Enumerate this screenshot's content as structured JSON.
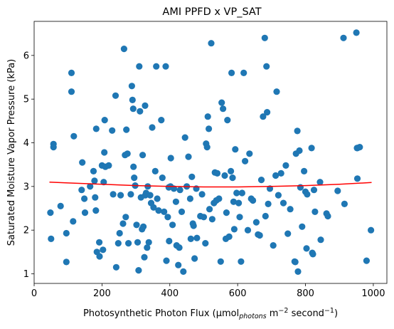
{
  "chart_data": {
    "type": "scatter",
    "title": "AMI PPFD x VP_SAT",
    "xlabel": {
      "prefix": "Photosynthetic Photon Flux (μmol",
      "sub": "photons",
      "mid": " m",
      "sup1": "−2",
      "mid2": " second",
      "sup2": "−1",
      "suffix": ")"
    },
    "ylabel": "Saturated Moisture Vapor Pressure (kPa)",
    "xlim": [
      0,
      1040
    ],
    "ylim": [
      0.78,
      6.78
    ],
    "xticks": [
      0,
      200,
      400,
      600,
      800,
      1000
    ],
    "yticks": [
      1,
      2,
      3,
      4,
      5,
      6
    ],
    "xtick_labels": [
      "0",
      "200",
      "400",
      "600",
      "800",
      "1000"
    ],
    "ytick_labels": [
      "1",
      "2",
      "3",
      "4",
      "5",
      "6"
    ],
    "point_color": "#1f77b4",
    "line_color": "#ff0000",
    "points": [
      [
        48,
        2.4
      ],
      [
        50,
        1.8
      ],
      [
        57,
        3.97
      ],
      [
        57,
        3.9
      ],
      [
        78,
        2.55
      ],
      [
        95,
        1.93
      ],
      [
        95,
        1.27
      ],
      [
        110,
        5.6
      ],
      [
        110,
        5.17
      ],
      [
        117,
        4.15
      ],
      [
        115,
        2.2
      ],
      [
        140,
        2.92
      ],
      [
        142,
        3.55
      ],
      [
        148,
        2.72
      ],
      [
        150,
        2.4
      ],
      [
        165,
        3.0
      ],
      [
        175,
        3.35
      ],
      [
        178,
        3.13
      ],
      [
        180,
        2.75
      ],
      [
        182,
        2.45
      ],
      [
        183,
        4.32
      ],
      [
        185,
        1.5
      ],
      [
        192,
        1.72
      ],
      [
        193,
        1.4
      ],
      [
        200,
        3.48
      ],
      [
        203,
        1.55
      ],
      [
        205,
        3.1
      ],
      [
        207,
        3.78
      ],
      [
        208,
        4.52
      ],
      [
        210,
        3.45
      ],
      [
        220,
        3.48
      ],
      [
        230,
        4.28
      ],
      [
        233,
        2.82
      ],
      [
        240,
        5.08
      ],
      [
        242,
        1.15
      ],
      [
        248,
        1.7
      ],
      [
        252,
        1.93
      ],
      [
        255,
        2.8
      ],
      [
        262,
        2.15
      ],
      [
        265,
        6.15
      ],
      [
        268,
        3.72
      ],
      [
        270,
        2.3
      ],
      [
        272,
        4.3
      ],
      [
        275,
        3.75
      ],
      [
        278,
        1.7
      ],
      [
        285,
        2.82
      ],
      [
        288,
        5.3
      ],
      [
        290,
        4.98
      ],
      [
        292,
        4.78
      ],
      [
        293,
        3.45
      ],
      [
        295,
        3.2
      ],
      [
        298,
        3.02
      ],
      [
        302,
        2.12
      ],
      [
        305,
        1.72
      ],
      [
        308,
        1.08
      ],
      [
        310,
        5.75
      ],
      [
        312,
        4.72
      ],
      [
        315,
        2.75
      ],
      [
        318,
        2.02
      ],
      [
        320,
        3.72
      ],
      [
        322,
        2.08
      ],
      [
        325,
        1.38
      ],
      [
        327,
        4.85
      ],
      [
        328,
        2.8
      ],
      [
        330,
        2.85
      ],
      [
        333,
        1.6
      ],
      [
        335,
        3.0
      ],
      [
        338,
        1.72
      ],
      [
        342,
        2.8
      ],
      [
        345,
        2.62
      ],
      [
        348,
        4.35
      ],
      [
        352,
        2.52
      ],
      [
        357,
        3.35
      ],
      [
        360,
        5.75
      ],
      [
        363,
        2.72
      ],
      [
        367,
        2.45
      ],
      [
        375,
        4.52
      ],
      [
        378,
        3.2
      ],
      [
        383,
        2.42
      ],
      [
        388,
        5.75
      ],
      [
        390,
        1.3
      ],
      [
        394,
        2.3
      ],
      [
        397,
        2.98
      ],
      [
        398,
        1.75
      ],
      [
        402,
        3.0
      ],
      [
        403,
        3.65
      ],
      [
        408,
        2.12
      ],
      [
        412,
        2.95
      ],
      [
        418,
        2.65
      ],
      [
        420,
        1.65
      ],
      [
        425,
        1.2
      ],
      [
        428,
        1.6
      ],
      [
        430,
        2.92
      ],
      [
        435,
        2.42
      ],
      [
        440,
        1.05
      ],
      [
        445,
        4.12
      ],
      [
        450,
        3.0
      ],
      [
        455,
        3.68
      ],
      [
        460,
        2.72
      ],
      [
        462,
        1.8
      ],
      [
        465,
        3.22
      ],
      [
        468,
        2.15
      ],
      [
        470,
        2.1
      ],
      [
        473,
        1.35
      ],
      [
        478,
        2.95
      ],
      [
        480,
        1.82
      ],
      [
        490,
        2.32
      ],
      [
        495,
        2.82
      ],
      [
        500,
        2.3
      ],
      [
        505,
        1.7
      ],
      [
        507,
        3.98
      ],
      [
        510,
        3.9
      ],
      [
        512,
        4.6
      ],
      [
        515,
        4.32
      ],
      [
        517,
        2.48
      ],
      [
        522,
        6.28
      ],
      [
        525,
        2.25
      ],
      [
        530,
        2.62
      ],
      [
        533,
        3.32
      ],
      [
        537,
        2.68
      ],
      [
        540,
        3.3
      ],
      [
        545,
        2.72
      ],
      [
        550,
        1.28
      ],
      [
        553,
        4.92
      ],
      [
        557,
        4.78
      ],
      [
        562,
        3.25
      ],
      [
        565,
        1.8
      ],
      [
        567,
        2.4
      ],
      [
        570,
        4.52
      ],
      [
        575,
        1.85
      ],
      [
        580,
        3.35
      ],
      [
        582,
        5.6
      ],
      [
        585,
        3.2
      ],
      [
        588,
        2.65
      ],
      [
        590,
        2.02
      ],
      [
        593,
        3.85
      ],
      [
        597,
        2.85
      ],
      [
        603,
        2.62
      ],
      [
        606,
        2.3
      ],
      [
        610,
        1.28
      ],
      [
        613,
        2.85
      ],
      [
        618,
        5.6
      ],
      [
        622,
        3.58
      ],
      [
        630,
        2.0
      ],
      [
        635,
        3.75
      ],
      [
        640,
        2.72
      ],
      [
        645,
        2.68
      ],
      [
        655,
        2.18
      ],
      [
        660,
        1.9
      ],
      [
        665,
        1.88
      ],
      [
        670,
        3.15
      ],
      [
        675,
        4.6
      ],
      [
        680,
        6.4
      ],
      [
        682,
        2.32
      ],
      [
        685,
        5.75
      ],
      [
        687,
        4.7
      ],
      [
        690,
        2.6
      ],
      [
        695,
        2.95
      ],
      [
        705,
        1.65
      ],
      [
        712,
        3.25
      ],
      [
        715,
        5.17
      ],
      [
        720,
        2.8
      ],
      [
        728,
        3.3
      ],
      [
        735,
        2.62
      ],
      [
        742,
        3.48
      ],
      [
        748,
        1.92
      ],
      [
        755,
        2.48
      ],
      [
        768,
        1.28
      ],
      [
        770,
        1.27
      ],
      [
        772,
        3.75
      ],
      [
        776,
        4.27
      ],
      [
        778,
        1.05
      ],
      [
        782,
        3.82
      ],
      [
        785,
        2.98
      ],
      [
        790,
        2.08
      ],
      [
        796,
        3.35
      ],
      [
        800,
        2.88
      ],
      [
        803,
        1.58
      ],
      [
        805,
        2.82
      ],
      [
        818,
        3.88
      ],
      [
        820,
        1.48
      ],
      [
        822,
        1.45
      ],
      [
        825,
        2.92
      ],
      [
        828,
        2.42
      ],
      [
        845,
        1.78
      ],
      [
        843,
        3.1
      ],
      [
        862,
        2.38
      ],
      [
        866,
        2.32
      ],
      [
        895,
        2.9
      ],
      [
        912,
        6.4
      ],
      [
        915,
        2.6
      ],
      [
        950,
        6.52
      ],
      [
        952,
        3.88
      ],
      [
        953,
        3.88
      ],
      [
        953,
        3.18
      ],
      [
        960,
        3.9
      ],
      [
        980,
        1.3
      ],
      [
        993,
        2.0
      ]
    ],
    "fit_line": {
      "x": [
        45,
        100,
        200,
        300,
        400,
        500,
        600,
        700,
        800,
        900,
        995
      ],
      "y": [
        3.1,
        3.08,
        3.05,
        3.02,
        3.0,
        2.99,
        2.99,
        3.0,
        3.02,
        3.05,
        3.09
      ]
    }
  }
}
